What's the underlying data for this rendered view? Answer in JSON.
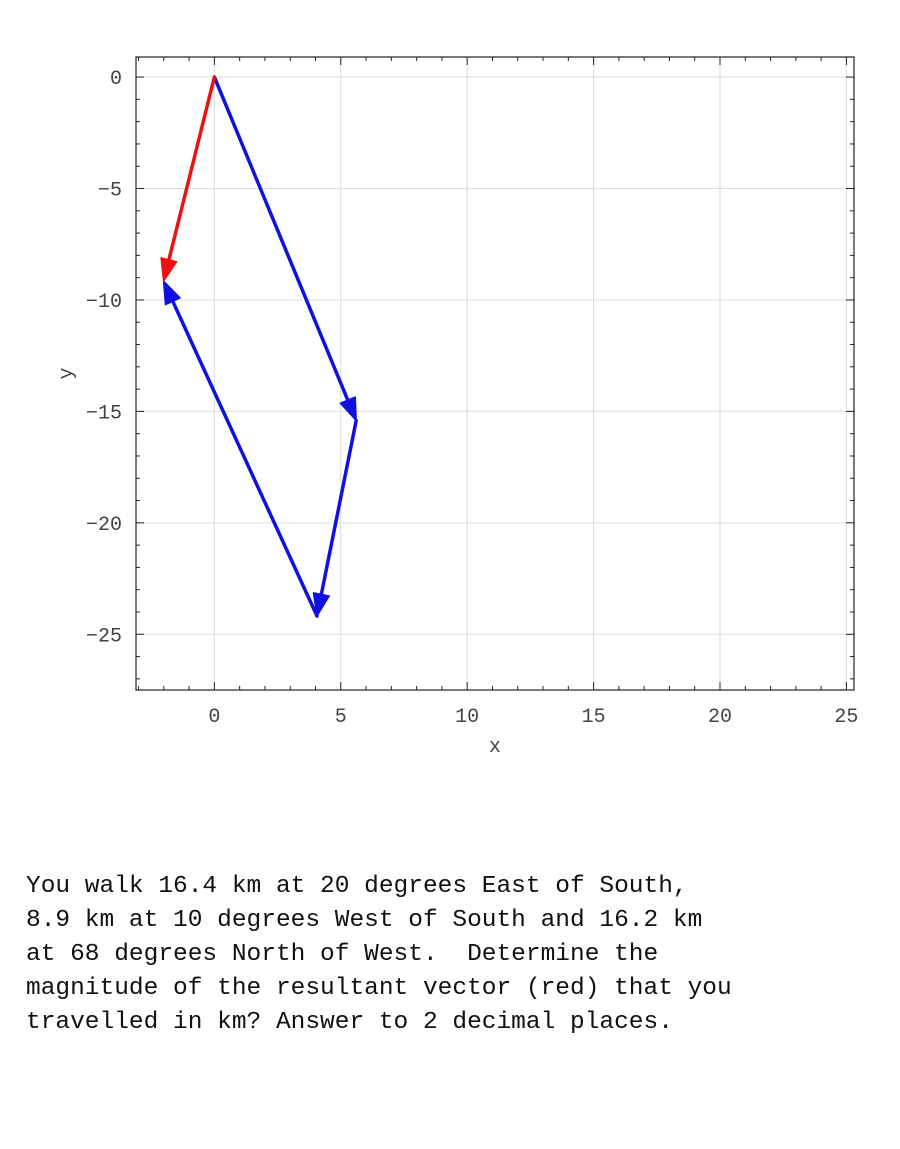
{
  "chart_data": {
    "type": "vector",
    "xlabel": "x",
    "ylabel": "y",
    "xlim": [
      -3.1,
      25.3
    ],
    "ylim": [
      -27.5,
      0.9
    ],
    "xticks": [
      0,
      5,
      10,
      15,
      20,
      25
    ],
    "yticks": [
      0,
      -5,
      -10,
      -15,
      -20,
      -25
    ],
    "grid": true,
    "vectors": [
      {
        "from": [
          0,
          0
        ],
        "to": [
          5.61,
          -15.41
        ],
        "color": "#1010e0"
      },
      {
        "from": [
          5.61,
          -15.41
        ],
        "to": [
          4.06,
          -24.18
        ],
        "color": "#1010e0"
      },
      {
        "from": [
          4.06,
          -24.18
        ],
        "to": [
          -2.01,
          -9.16
        ],
        "color": "#1010e0"
      },
      {
        "from": [
          0,
          0
        ],
        "to": [
          -2.01,
          -9.16
        ],
        "color": "#ee1111"
      }
    ]
  },
  "question": {
    "lines": [
      "You walk 16.4 km at 20 degrees East of South,",
      "8.9 km at 10 degrees West of South and 16.2 km",
      "at 68 degrees North of West.  Determine the",
      "magnitude of the resultant vector (red) that you",
      "travelled in km? Answer to 2 decimal places."
    ]
  }
}
